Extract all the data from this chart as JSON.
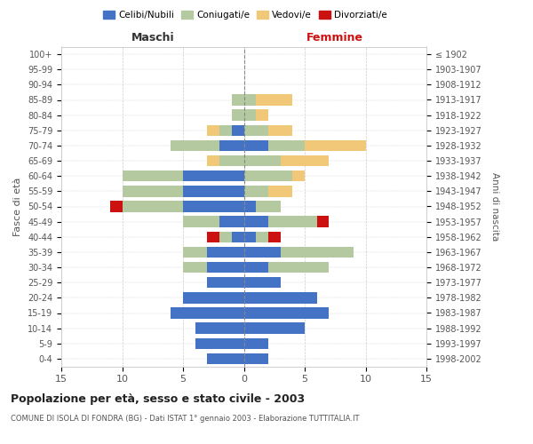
{
  "age_groups": [
    "100+",
    "95-99",
    "90-94",
    "85-89",
    "80-84",
    "75-79",
    "70-74",
    "65-69",
    "60-64",
    "55-59",
    "50-54",
    "45-49",
    "40-44",
    "35-39",
    "30-34",
    "25-29",
    "20-24",
    "15-19",
    "10-14",
    "5-9",
    "0-4"
  ],
  "birth_years": [
    "≤ 1902",
    "1903-1907",
    "1908-1912",
    "1913-1917",
    "1918-1922",
    "1923-1927",
    "1928-1932",
    "1933-1937",
    "1938-1942",
    "1943-1947",
    "1948-1952",
    "1953-1957",
    "1958-1962",
    "1963-1967",
    "1968-1972",
    "1973-1977",
    "1978-1982",
    "1983-1987",
    "1988-1992",
    "1993-1997",
    "1998-2002"
  ],
  "males": {
    "celibi": [
      0,
      0,
      0,
      0,
      0,
      1,
      2,
      0,
      5,
      5,
      5,
      2,
      1,
      3,
      3,
      3,
      5,
      6,
      4,
      4,
      3
    ],
    "coniugati": [
      0,
      0,
      0,
      1,
      1,
      1,
      4,
      2,
      5,
      5,
      5,
      3,
      1,
      2,
      2,
      0,
      0,
      0,
      0,
      0,
      0
    ],
    "vedovi": [
      0,
      0,
      0,
      0,
      0,
      1,
      0,
      1,
      0,
      0,
      0,
      0,
      0,
      0,
      0,
      0,
      0,
      0,
      0,
      0,
      0
    ],
    "divorziati": [
      0,
      0,
      0,
      0,
      0,
      0,
      0,
      0,
      0,
      0,
      1,
      0,
      1,
      0,
      0,
      0,
      0,
      0,
      0,
      0,
      0
    ]
  },
  "females": {
    "nubili": [
      0,
      0,
      0,
      0,
      0,
      0,
      2,
      0,
      0,
      0,
      1,
      2,
      1,
      3,
      2,
      3,
      6,
      7,
      5,
      2,
      2
    ],
    "coniugate": [
      0,
      0,
      0,
      1,
      1,
      2,
      3,
      3,
      4,
      2,
      2,
      4,
      1,
      6,
      5,
      0,
      0,
      0,
      0,
      0,
      0
    ],
    "vedove": [
      0,
      0,
      0,
      3,
      1,
      2,
      5,
      4,
      1,
      2,
      0,
      0,
      0,
      0,
      0,
      0,
      0,
      0,
      0,
      0,
      0
    ],
    "divorziate": [
      0,
      0,
      0,
      0,
      0,
      0,
      0,
      0,
      0,
      0,
      0,
      1,
      1,
      0,
      0,
      0,
      0,
      0,
      0,
      0,
      0
    ]
  },
  "colors": {
    "celibi_nubili": "#4472C4",
    "coniugati": "#B5C9A0",
    "vedovi": "#F0C878",
    "divorziati": "#CC1111"
  },
  "xlim": 15,
  "title": "Popolazione per età, sesso e stato civile - 2003",
  "subtitle": "COMUNE DI ISOLA DI FONDRA (BG) - Dati ISTAT 1° gennaio 2003 - Elaborazione TUTTITALIA.IT",
  "ylabel": "Fasce di età",
  "legend_labels": [
    "Celibi/Nubili",
    "Coniugati/e",
    "Vedovi/e",
    "Divorziati/e"
  ],
  "maschi_label": "Maschi",
  "femmine_label": "Femmine",
  "anni_nascita_label": "Anni di nascita"
}
